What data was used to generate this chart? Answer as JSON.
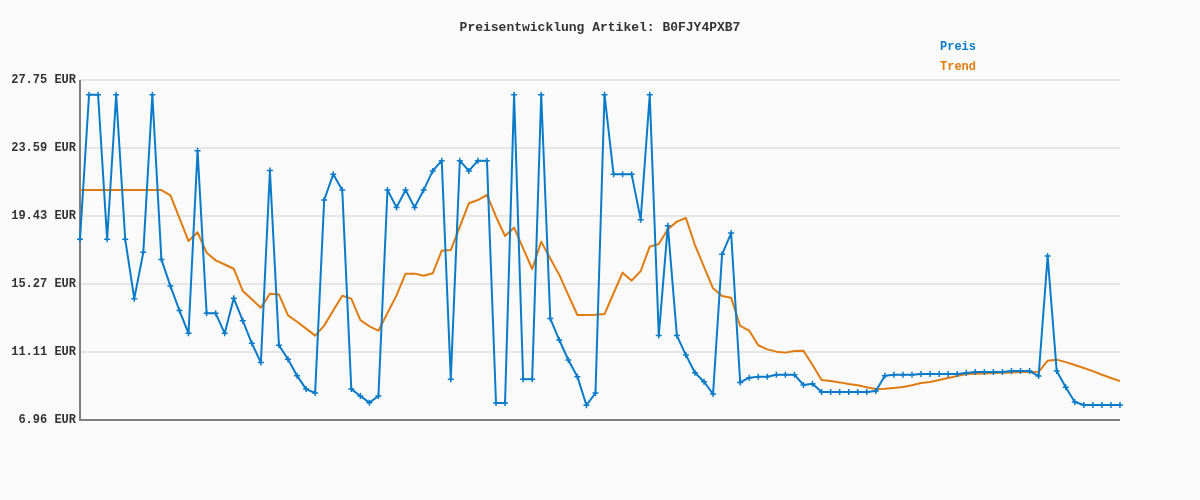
{
  "chart_data": {
    "type": "line",
    "title": "Preisentwicklung Artikel: B0FJY4PXB7",
    "categories": [
      null,
      null,
      null,
      null,
      null,
      null,
      null,
      null,
      null,
      null,
      null,
      null,
      null,
      null,
      null,
      null,
      null,
      null,
      null,
      null,
      null,
      null,
      null,
      null,
      null,
      null,
      null,
      null,
      null,
      null,
      null,
      null,
      null,
      null,
      null,
      null,
      null,
      null,
      null,
      null,
      null,
      null,
      null,
      null,
      null,
      null,
      null,
      null,
      null,
      null,
      null,
      null,
      null,
      null,
      null,
      null,
      null,
      null,
      null,
      null,
      null,
      null,
      null,
      null,
      null,
      null,
      null,
      null,
      null,
      null,
      null,
      null,
      null,
      null,
      null,
      null,
      null,
      null,
      null,
      null,
      null,
      null,
      null,
      null,
      null,
      null,
      null,
      null,
      null,
      null,
      null,
      null,
      null,
      null,
      null,
      null,
      null,
      null,
      null,
      null,
      null,
      null,
      null,
      null,
      null,
      null,
      null,
      null,
      null,
      null,
      null,
      null,
      null,
      null,
      null,
      null
    ],
    "series": [
      {
        "name": "Preis",
        "color": "#0a7bc8",
        "marker": "cross",
        "values": [
          18.01,
          26.85,
          26.85,
          18.01,
          26.85,
          18.01,
          14.38,
          17.21,
          26.85,
          16.78,
          15.15,
          13.65,
          12.26,
          23.43,
          13.48,
          13.48,
          12.26,
          14.4,
          13.03,
          11.65,
          10.47,
          22.21,
          11.53,
          10.67,
          9.67,
          8.85,
          8.61,
          20.41,
          21.98,
          21.02,
          8.85,
          8.43,
          8.02,
          8.43,
          21.02,
          19.96,
          21.02,
          19.96,
          21.02,
          22.19,
          22.82,
          9.45,
          22.82,
          22.19,
          22.82,
          22.82,
          8.0,
          8.0,
          26.85,
          9.45,
          9.45,
          26.85,
          13.16,
          11.85,
          10.63,
          9.61,
          7.86,
          8.61,
          26.85,
          21.98,
          21.98,
          21.98,
          19.21,
          26.85,
          12.12,
          18.84,
          12.12,
          10.93,
          9.85,
          9.3,
          8.55,
          17.09,
          18.39,
          9.26,
          9.55,
          9.61,
          9.61,
          9.73,
          9.73,
          9.73,
          9.1,
          9.18,
          8.67,
          8.67,
          8.67,
          8.67,
          8.67,
          8.67,
          8.73,
          9.67,
          9.73,
          9.73,
          9.73,
          9.77,
          9.77,
          9.77,
          9.77,
          9.77,
          9.83,
          9.89,
          9.89,
          9.89,
          9.89,
          9.95,
          9.95,
          9.95,
          9.65,
          16.99,
          9.95,
          8.96,
          8.06,
          7.88,
          7.88,
          7.88,
          7.88,
          7.88
        ]
      },
      {
        "name": "Trend",
        "color": "#e07b10",
        "marker": "none",
        "values": [
          21.02,
          21.02,
          21.02,
          21.02,
          21.02,
          21.02,
          21.02,
          21.02,
          21.02,
          21.02,
          20.7,
          19.3,
          17.9,
          18.44,
          17.19,
          16.72,
          16.47,
          16.21,
          14.85,
          14.34,
          13.83,
          14.68,
          14.64,
          13.36,
          12.97,
          12.55,
          12.12,
          12.73,
          13.65,
          14.56,
          14.38,
          13.07,
          12.69,
          12.42,
          13.5,
          14.58,
          15.91,
          15.91,
          15.78,
          15.93,
          17.31,
          17.35,
          18.78,
          20.21,
          20.41,
          20.72,
          19.39,
          18.21,
          18.72,
          17.46,
          16.19,
          17.86,
          16.84,
          15.83,
          14.6,
          13.38,
          13.38,
          13.4,
          13.44,
          14.71,
          15.97,
          15.48,
          16.07,
          17.56,
          17.72,
          18.62,
          19.09,
          19.31,
          17.66,
          16.33,
          15.01,
          14.54,
          14.44,
          12.71,
          12.42,
          11.53,
          11.28,
          11.14,
          11.08,
          11.18,
          11.2,
          10.32,
          9.4,
          9.34,
          9.26,
          9.16,
          9.08,
          8.96,
          8.85,
          8.87,
          8.92,
          8.98,
          9.08,
          9.22,
          9.28,
          9.4,
          9.53,
          9.65,
          9.77,
          9.79,
          9.81,
          9.83,
          9.85,
          9.87,
          9.89,
          9.89,
          9.91,
          10.59,
          10.65,
          10.5,
          10.32,
          10.14,
          9.95,
          9.73,
          9.53,
          9.34
        ]
      }
    ],
    "ylim": [
      6.96,
      27.75
    ],
    "yticks": [
      {
        "value": 6.96,
        "label": "6.96 EUR"
      },
      {
        "value": 11.11,
        "label": "11.11 EUR"
      },
      {
        "value": 15.27,
        "label": "15.27 EUR"
      },
      {
        "value": 19.43,
        "label": "19.43 EUR"
      },
      {
        "value": 23.59,
        "label": "23.59 EUR"
      },
      {
        "value": 27.75,
        "label": "27.75 EUR"
      }
    ],
    "grid": "y",
    "legend": "top right",
    "tick_labels": "y",
    "line_style": "solid"
  }
}
